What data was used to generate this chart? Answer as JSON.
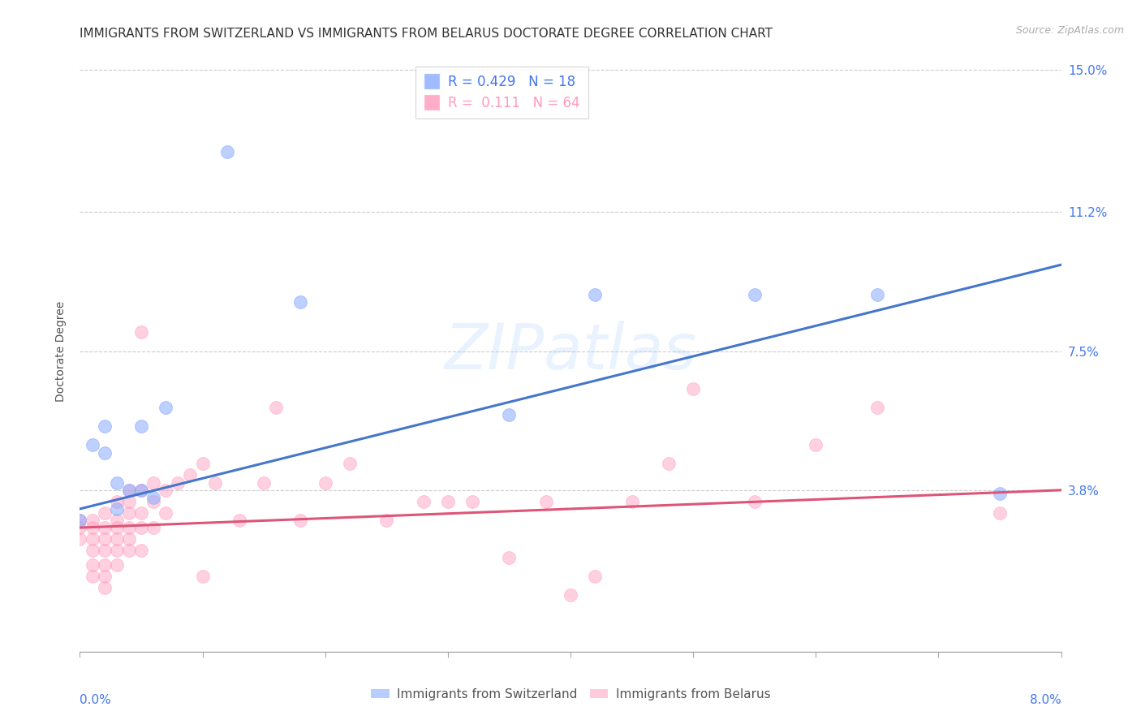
{
  "title": "IMMIGRANTS FROM SWITZERLAND VS IMMIGRANTS FROM BELARUS DOCTORATE DEGREE CORRELATION CHART",
  "source": "Source: ZipAtlas.com",
  "ylabel": "Doctorate Degree",
  "xlim": [
    0.0,
    0.08
  ],
  "ylim": [
    -0.005,
    0.155
  ],
  "yticks_right": [
    0.038,
    0.075,
    0.112,
    0.15
  ],
  "ytick_labels_right": [
    "3.8%",
    "7.5%",
    "11.2%",
    "15.0%"
  ],
  "xticks": [
    0.0,
    0.01,
    0.02,
    0.03,
    0.04,
    0.05,
    0.06,
    0.07,
    0.08
  ],
  "legend1_label": "R = 0.429   N = 18",
  "legend2_label": "R =  0.111   N = 64",
  "legend1_color": "#88aaff",
  "legend2_color": "#ff99bb",
  "blue_scatter_x": [
    0.0,
    0.001,
    0.002,
    0.003,
    0.004,
    0.005,
    0.006,
    0.007,
    0.012,
    0.018,
    0.035,
    0.042,
    0.055,
    0.065,
    0.075,
    0.002,
    0.003,
    0.005
  ],
  "blue_scatter_y": [
    0.03,
    0.05,
    0.055,
    0.04,
    0.038,
    0.038,
    0.036,
    0.06,
    0.128,
    0.088,
    0.058,
    0.09,
    0.09,
    0.09,
    0.037,
    0.048,
    0.033,
    0.055
  ],
  "pink_scatter_x": [
    0.0,
    0.0,
    0.0,
    0.001,
    0.001,
    0.001,
    0.001,
    0.001,
    0.001,
    0.002,
    0.002,
    0.002,
    0.002,
    0.002,
    0.002,
    0.002,
    0.003,
    0.003,
    0.003,
    0.003,
    0.003,
    0.003,
    0.004,
    0.004,
    0.004,
    0.004,
    0.004,
    0.004,
    0.005,
    0.005,
    0.005,
    0.005,
    0.005,
    0.006,
    0.006,
    0.006,
    0.007,
    0.007,
    0.008,
    0.009,
    0.01,
    0.01,
    0.011,
    0.013,
    0.015,
    0.016,
    0.018,
    0.02,
    0.022,
    0.025,
    0.028,
    0.03,
    0.032,
    0.035,
    0.038,
    0.04,
    0.042,
    0.045,
    0.048,
    0.05,
    0.055,
    0.06,
    0.065,
    0.075
  ],
  "pink_scatter_y": [
    0.03,
    0.028,
    0.025,
    0.03,
    0.028,
    0.025,
    0.022,
    0.018,
    0.015,
    0.032,
    0.028,
    0.025,
    0.022,
    0.018,
    0.015,
    0.012,
    0.035,
    0.03,
    0.028,
    0.025,
    0.022,
    0.018,
    0.038,
    0.035,
    0.032,
    0.028,
    0.025,
    0.022,
    0.08,
    0.038,
    0.032,
    0.028,
    0.022,
    0.04,
    0.035,
    0.028,
    0.038,
    0.032,
    0.04,
    0.042,
    0.015,
    0.045,
    0.04,
    0.03,
    0.04,
    0.06,
    0.03,
    0.04,
    0.045,
    0.03,
    0.035,
    0.035,
    0.035,
    0.02,
    0.035,
    0.01,
    0.015,
    0.035,
    0.045,
    0.065,
    0.035,
    0.05,
    0.06,
    0.032
  ],
  "blue_line_x": [
    0.0,
    0.08
  ],
  "blue_line_y": [
    0.033,
    0.098
  ],
  "pink_line_x": [
    0.0,
    0.08
  ],
  "pink_line_y": [
    0.028,
    0.038
  ],
  "scatter_size": 130,
  "background_color": "#ffffff",
  "grid_color": "#cccccc",
  "title_fontsize": 11,
  "axis_label_fontsize": 10,
  "tick_fontsize": 11,
  "legend_fontsize": 12,
  "right_tick_color": "#4477ee",
  "blue_line_color": "#4477cc",
  "pink_line_color": "#dd5577"
}
